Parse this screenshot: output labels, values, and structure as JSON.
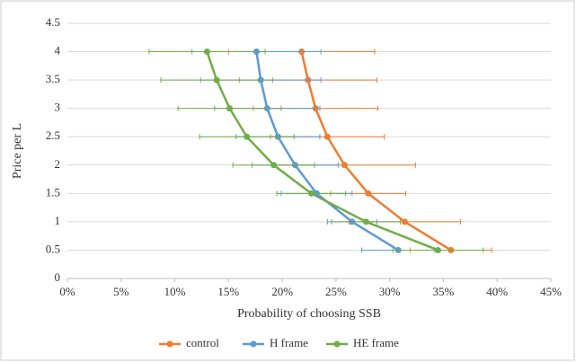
{
  "chart_data": {
    "type": "line",
    "xlabel": "Probability  of choosing SSB",
    "ylabel": "Price per L",
    "xlim": [
      0,
      45
    ],
    "xticks": [
      {
        "value": 0,
        "label": "0%"
      },
      {
        "value": 5,
        "label": "5%"
      },
      {
        "value": 10,
        "label": "10%"
      },
      {
        "value": 15,
        "label": "15%"
      },
      {
        "value": 20,
        "label": "20%"
      },
      {
        "value": 25,
        "label": "25%"
      },
      {
        "value": 30,
        "label": "30%"
      },
      {
        "value": 35,
        "label": "35%"
      },
      {
        "value": 40,
        "label": "40%"
      },
      {
        "value": 45,
        "label": "45%"
      }
    ],
    "ylim": [
      0,
      4.5
    ],
    "yticks": [
      0,
      0.5,
      1,
      1.5,
      2,
      2.5,
      3,
      3.5,
      4,
      4.5
    ],
    "grid": true,
    "legend": "bottom",
    "series": [
      {
        "name": "control",
        "color": "#ed7d31",
        "y": [
          0.5,
          1,
          1.5,
          2,
          2.5,
          3,
          3.5,
          4
        ],
        "x": [
          35.7,
          31.4,
          28.0,
          25.8,
          24.2,
          23.1,
          22.4,
          21.8
        ],
        "xerr": [
          3.8,
          5.2,
          3.5,
          6.6,
          5.3,
          5.8,
          6.4,
          6.8
        ]
      },
      {
        "name": "H frame",
        "color": "#5b9bd5",
        "y": [
          0.5,
          1,
          1.5,
          2,
          2.5,
          3,
          3.5,
          4
        ],
        "x": [
          30.8,
          26.5,
          23.2,
          21.2,
          19.6,
          18.6,
          18.0,
          17.6
        ],
        "xerr": [
          3.4,
          2.3,
          3.3,
          4.0,
          3.9,
          4.9,
          5.6,
          6.0
        ]
      },
      {
        "name": "HE frame",
        "color": "#70ad47",
        "y": [
          0.5,
          1,
          1.5,
          2,
          2.5,
          3,
          3.5,
          4
        ],
        "x": [
          34.5,
          27.8,
          22.7,
          19.2,
          16.7,
          15.1,
          13.9,
          13.0
        ],
        "xerr": [
          4.2,
          3.2,
          3.2,
          3.8,
          4.4,
          4.8,
          5.2,
          5.4
        ]
      }
    ]
  }
}
